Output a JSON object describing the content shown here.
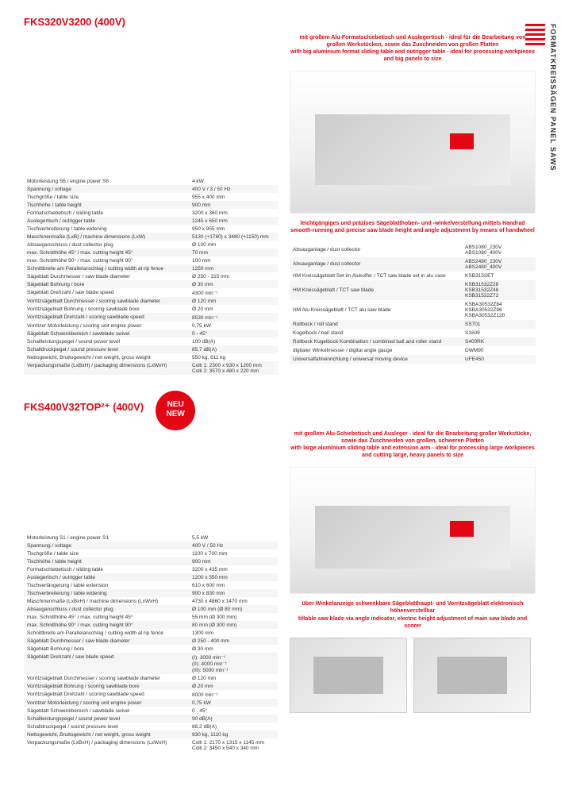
{
  "sidebar": "FORMATKREISSÄGEN  PANEL SAWS",
  "product1": {
    "title": "FKS320V3200 (400V)",
    "hero_text": "mit großem Alu-Formatschiebetisch und Auslegertisch - ideal für die Bearbeitung von großen Werkstücken, sowie das Zuschneiden von großen Platten\nwith big aluminium format sliding table and outrigger table - ideal for processing workpieces and big panels to size",
    "mid_text": "leichtgängiges und präzises Sägeblatthoben- und -winkelverstellung mittels Handrad\nsmooth-running and precise saw blade height and angle adjustment by means of handwheel",
    "specs": [
      [
        "Motorleistung S6 / engine power S6",
        "4 kW"
      ],
      [
        "Spannung / voltage",
        "400 V / 3 / 50 Hz"
      ],
      [
        "Tischgröße / table size",
        "955 x 400 mm"
      ],
      [
        "Tischhöhe / table height",
        "900 mm"
      ],
      [
        "Formatschiebetisch / sliding table",
        "3200 x 360 mm"
      ],
      [
        "Auslegertisch / outrigger table",
        "1245 x 650 mm"
      ],
      [
        "Tischverbreiterung / table widening",
        "950 x 955 mm"
      ],
      [
        "Maschinenmaße (LxB) / machine dimensions (LxW)",
        "5130 (+1760) x 3480 (+1150) mm"
      ],
      [
        "Absauganschluss / dust collector plug",
        "Ø 100 mm"
      ],
      [
        "max. Schnitthöhe 45° / max. cutting height 45°",
        "70 mm"
      ],
      [
        "max. Schnitthöhe 90° / max. cutting height 90°",
        "100 mm"
      ],
      [
        "Schnittbreite am Parallelanschlag / cutting width at rip fence",
        "1250 mm"
      ],
      [
        "Sägeblatt Durchmesser / saw blade diameter",
        "Ø 250 - 315 mm"
      ],
      [
        "Sägeblatt Bohrung / bore",
        "Ø 30 mm"
      ],
      [
        "Sägeblatt Drehzahl / saw blade speed",
        "4300 min⁻¹"
      ],
      [
        "Vorritzsägeblatt Durchmesser / scoring sawblade diameter",
        "Ø 120 mm"
      ],
      [
        "Vorritzsägeblatt Bohrung / scoring sawblade bore",
        "Ø 20 mm"
      ],
      [
        "Vorritzsägeblatt Drehzahl / scoring sawblade speed",
        "8530 min⁻¹"
      ],
      [
        "Vorritzer Motorleistung / scoring unit engine power",
        "0,75 kW"
      ],
      [
        "Sägeblatt Schwenkbereich / sawblade swivel",
        "0 - 45°"
      ],
      [
        "Schallleistungspegel / sound power level",
        "100 dB(A)"
      ],
      [
        "Schalldruckpegel / sound pressure level",
        "85,7 dB(A)"
      ],
      [
        "Nettogewicht, Bruttogewicht / net weight, gross weight",
        "550 kg, 611 kg"
      ],
      [
        "Verpackungsmaße (LxBxH) / packaging dimensions (LxWxH)",
        "Colli 1: 2300 x 930 x 1200 mm\nColli 2: 3570 x 480 x 220 mm"
      ]
    ],
    "accessories": [
      [
        "Absauganlage / dust collector",
        "ABS1080_230V\nABS1080_400V"
      ],
      [
        "Absauganlage / dust collector",
        "ABS2480_230V\nABS2480_400V"
      ],
      [
        "HM Kreissägeblatt Set im Alukoffer / TCT saw blade set in alu case",
        "KSB315SET"
      ],
      [
        "HM Kreissägeblatt / TCT saw blade",
        "KSB31532Z28\nKSB31532Z48\nKSB31532Z72"
      ],
      [
        "HM Alu Kreissägeblatt / TCT alu saw blade",
        "KSBA30532Z84\nKSBA30532Z96\nKSBA30532Z120"
      ],
      [
        "Rollbock / roll stand",
        "SS701"
      ],
      [
        "Kugelbock / ball stand",
        "S1609"
      ],
      [
        "Rollbock Kugelbock Kombination / combined ball and roller stand",
        "S400RK"
      ],
      [
        "digitaler Winkelmesser / digital angle gauge",
        "DWM90"
      ],
      [
        "Universalfahreinrichtung / universal moving device",
        "UFE450"
      ]
    ]
  },
  "product2": {
    "title": "FKS400V32TOP²⁺ (400V)",
    "neu": "NEU\nNEW",
    "hero_text": "mit großem Alu-Schiebetisch und Ausleger - ideal für die Bearbeitung großer Werkstücke, sowie das Zuschneiden von großen, schweren Platten\nwith large aluminium sliding table and extension arm - ideal for processing large workpieces and cutting large, heavy panels to size",
    "mid_text": "über Winkelanzeige schwenkbare Sägeblatthaupt- und Vorritzsägeblatt elektronisch höhenverstellbar\ntiltable saw blade via angle indicator, electric height adjustment of main saw blade and scorer",
    "specs": [
      [
        "Motorleistung S1 / engine power S1",
        "5,5 kW"
      ],
      [
        "Spannung / voltage",
        "400 V / 50 Hz"
      ],
      [
        "Tischgröße / table size",
        "1100 x 700 mm"
      ],
      [
        "Tischhöhe / table height",
        "900 mm"
      ],
      [
        "Formatschiebetisch / sliding table",
        "3200 x 435 mm"
      ],
      [
        "Auslegertisch / outrigger table",
        "1200 x 550 mm"
      ],
      [
        "Tischverlängerung / table extension",
        "610 x 600 mm"
      ],
      [
        "Tischverbreiterung / table widening",
        "900 x 830 mm"
      ],
      [
        "Maschinenmaße (LxBxH) / machine dimensions (LxWxH)",
        "4730 x 4860 x 1470 mm"
      ],
      [
        "Absauganschluss / dust collector plug",
        "Ø 100 mm (Ø 80 mm)"
      ],
      [
        "max. Schnitthöhe 45° / max. cutting height 45°",
        "55 mm (Ø 300 mm)"
      ],
      [
        "max. Schnitthöhe 90° / max. cutting height 90°",
        "80 mm (Ø 300 mm)"
      ],
      [
        "Schnittbreite am Parallelanschlag / cutting width at rip fence",
        "1300 mm"
      ],
      [
        "Sägeblatt Durchmesser / saw blade diameter",
        "Ø 250 - 400 mm"
      ],
      [
        "Sägeblatt Bohrung / bore",
        "Ø 30 mm"
      ],
      [
        "Sägeblatt Drehzahl / saw blade speed",
        "(I): 3000 min⁻¹\n(II): 4000 min⁻¹\n(III): 5000 min⁻¹"
      ],
      [
        "Vorritzsägeblatt Durchmesser / scoring sawblade diameter",
        "Ø 120 mm"
      ],
      [
        "Vorritzsägeblatt Bohrung / scoring sawblade bore",
        "Ø 20 mm"
      ],
      [
        "Vorritzsägeblatt Drehzahl / scoring sawblade speed",
        "8000 min⁻¹"
      ],
      [
        "Vorritzer Motorleistung / scoring unit engine power",
        "0,75 kW"
      ],
      [
        "Sägeblatt Schwenkbereich / sawblade swivel",
        "0 - 45°"
      ],
      [
        "Schallleistungspegel / sound power level",
        "90 dB(A)"
      ],
      [
        "Schalldruckpegel / sound pressure level",
        "88,2 dB(A)"
      ],
      [
        "Nettogewicht, Bruttogewicht / net weight, gross weight",
        "930 kg, 1110 kg"
      ],
      [
        "Verpackungsmaße (LxBxH) / packaging dimensions (LxWxH)",
        "Colli 1: 2170 x 1315 x 1145 mm\nColli 2: 3450 x 540 x 340 mm"
      ]
    ]
  }
}
